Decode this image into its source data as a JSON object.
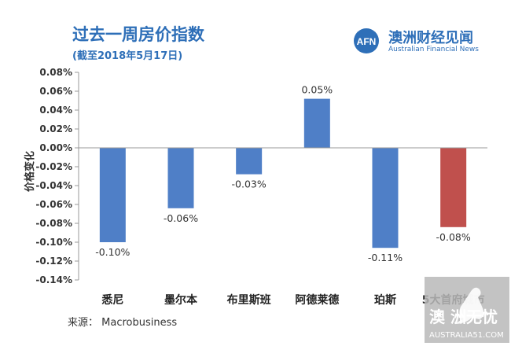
{
  "header": {
    "title": "过去一周房价指数",
    "subtitle": "(截至2018年5月17日)"
  },
  "brand": {
    "logo_text": "AFN",
    "name_cn": "澳洲财经见闻",
    "name_en": "Australian Financial News"
  },
  "footer": {
    "source": "来源：  Macrobusiness",
    "badge_cn": "澳 洲无忧",
    "badge_en": "AUSTRALIA51.COM"
  },
  "colors": {
    "bar_blue": "#4f7fc7",
    "bar_red": "#c0504d",
    "title_blue": "#2e6fb8"
  },
  "chart_data": {
    "type": "bar",
    "title": "过去一周房价指数",
    "subtitle": "(截至2018年5月17日)",
    "ylabel": "价格变化",
    "categories": [
      "悉尼",
      "墨尔本",
      "布里斯班",
      "阿德莱德",
      "珀斯",
      "5大首府城市"
    ],
    "values": [
      -0.1,
      -0.064,
      -0.028,
      0.052,
      -0.106,
      -0.084
    ],
    "data_labels": [
      "-0.10%",
      "-0.06%",
      "-0.03%",
      "0.05%",
      "-0.11%",
      "-0.08%"
    ],
    "bar_colors": [
      "#4f7fc7",
      "#4f7fc7",
      "#4f7fc7",
      "#4f7fc7",
      "#4f7fc7",
      "#c0504d"
    ],
    "ylim": [
      -0.14,
      0.08
    ],
    "yticks": [
      0.08,
      0.06,
      0.04,
      0.02,
      0.0,
      -0.02,
      -0.04,
      -0.06,
      -0.08,
      -0.1,
      -0.12,
      -0.14
    ],
    "ytick_labels": [
      "0.08%",
      "0.06%",
      "0.04%",
      "0.02%",
      "0.00%",
      "-0.02%",
      "-0.04%",
      "-0.06%",
      "-0.08%",
      "-0.10%",
      "-0.12%",
      "-0.14%"
    ],
    "grid": false,
    "legend": "none"
  }
}
